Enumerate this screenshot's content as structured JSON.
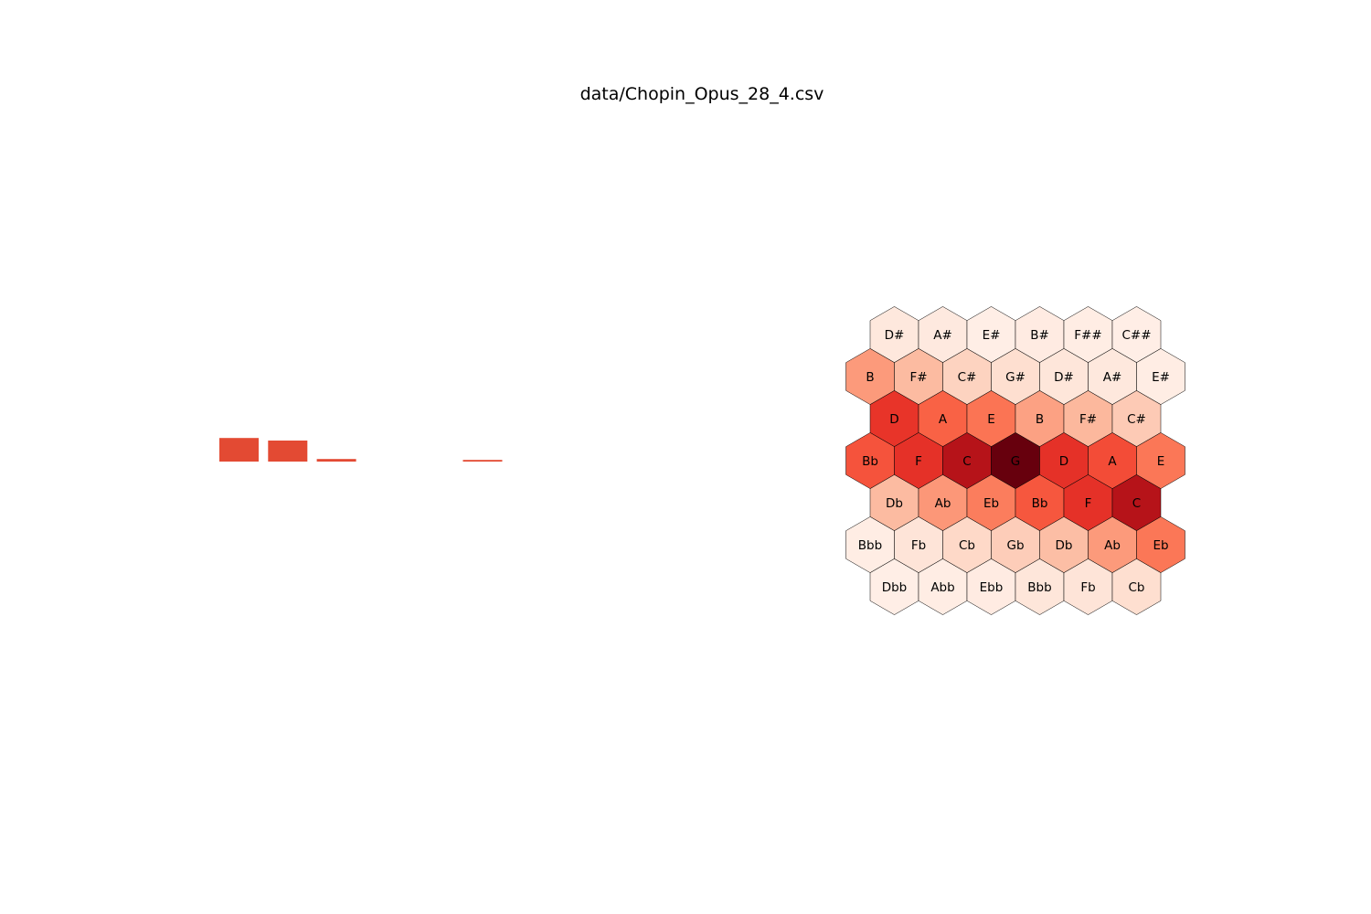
{
  "title": "data/Chopin_Opus_28_4.csv",
  "chart_data": [
    {
      "type": "bar",
      "title": "",
      "xlabel": "",
      "ylabel": "",
      "color": "#e34a33",
      "values": [
        0.28,
        0.25,
        0.03,
        0,
        0,
        0.02
      ],
      "grid": false,
      "axes_visible": false
    },
    {
      "type": "heatmap",
      "shape": "hexagonal tonnetz",
      "colormap": "Reds",
      "vmin": 0,
      "vmax": 1,
      "rows": [
        {
          "labels": [
            "D#",
            "A#",
            "E#",
            "B#",
            "F##",
            "C##"
          ],
          "values": [
            0.08,
            0.07,
            0.04,
            0.06,
            0.05,
            0.04
          ]
        },
        {
          "labels": [
            "B",
            "F#",
            "C#",
            "G#",
            "D#",
            "A#",
            "E#"
          ],
          "values": [
            0.35,
            0.25,
            0.17,
            0.13,
            0.09,
            0.08,
            0.05
          ]
        },
        {
          "labels": [
            "D",
            "A",
            "E",
            "B",
            "F#",
            "C#"
          ],
          "values": [
            0.65,
            0.52,
            0.47,
            0.33,
            0.26,
            0.2
          ]
        },
        {
          "labels": [
            "Bb",
            "F",
            "C",
            "G",
            "D",
            "A",
            "E"
          ],
          "values": [
            0.56,
            0.66,
            0.82,
            1.0,
            0.66,
            0.58,
            0.46
          ]
        },
        {
          "labels": [
            "Db",
            "Ab",
            "Eb",
            "Bb",
            "F",
            "C"
          ],
          "values": [
            0.25,
            0.36,
            0.44,
            0.55,
            0.66,
            0.82
          ]
        },
        {
          "labels": [
            "Bbb",
            "Fb",
            "Cb",
            "Gb",
            "Db",
            "Ab",
            "Eb"
          ],
          "values": [
            0.05,
            0.1,
            0.15,
            0.19,
            0.24,
            0.35,
            0.46
          ]
        },
        {
          "labels": [
            "Dbb",
            "Abb",
            "Ebb",
            "Bbb",
            "Fb",
            "Cb"
          ],
          "values": [
            0.04,
            0.05,
            0.06,
            0.09,
            0.1,
            0.13
          ]
        }
      ]
    }
  ]
}
